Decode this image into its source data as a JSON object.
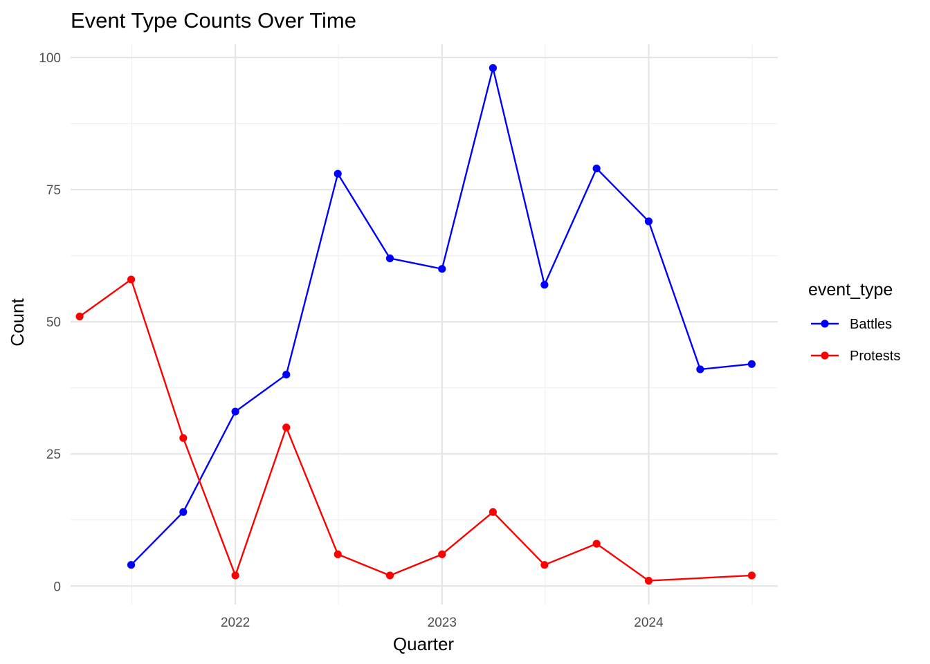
{
  "chart_data": {
    "type": "line",
    "title": "Event Type Counts Over Time",
    "xlabel": "Quarter",
    "ylabel": "Count",
    "x_tick_labels": [
      "2022",
      "2023",
      "2024"
    ],
    "y_tick_labels": [
      "0",
      "25",
      "50",
      "75",
      "100"
    ],
    "ylim": [
      -3.5,
      102.5
    ],
    "xlim": [
      "2021-03-16",
      "2024-08-16"
    ],
    "x_ticks": [
      "2022-01-01",
      "2023-01-01",
      "2024-01-01"
    ],
    "y_ticks": [
      0,
      25,
      50,
      75,
      100
    ],
    "grid": true,
    "legend": {
      "title": "event_type",
      "position": "right"
    },
    "series": [
      {
        "name": "Battles",
        "color": "#0000ff",
        "x": [
          "2021-07-01",
          "2021-10-01",
          "2022-01-01",
          "2022-04-01",
          "2022-07-01",
          "2022-10-01",
          "2023-01-01",
          "2023-04-01",
          "2023-07-01",
          "2023-10-01",
          "2024-01-01",
          "2024-04-01",
          "2024-07-01"
        ],
        "values": [
          4,
          14,
          33,
          40,
          78,
          62,
          60,
          98,
          57,
          79,
          69,
          41,
          42
        ]
      },
      {
        "name": "Protests",
        "color": "#ff0000",
        "x": [
          "2021-04-01",
          "2021-07-01",
          "2021-10-01",
          "2022-01-01",
          "2022-04-01",
          "2022-07-01",
          "2022-10-01",
          "2023-01-01",
          "2023-04-01",
          "2023-07-01",
          "2023-10-01",
          "2024-01-01",
          "2024-07-01"
        ],
        "values": [
          51,
          58,
          28,
          2,
          30,
          6,
          2,
          6,
          14,
          4,
          8,
          1,
          2
        ]
      }
    ]
  }
}
